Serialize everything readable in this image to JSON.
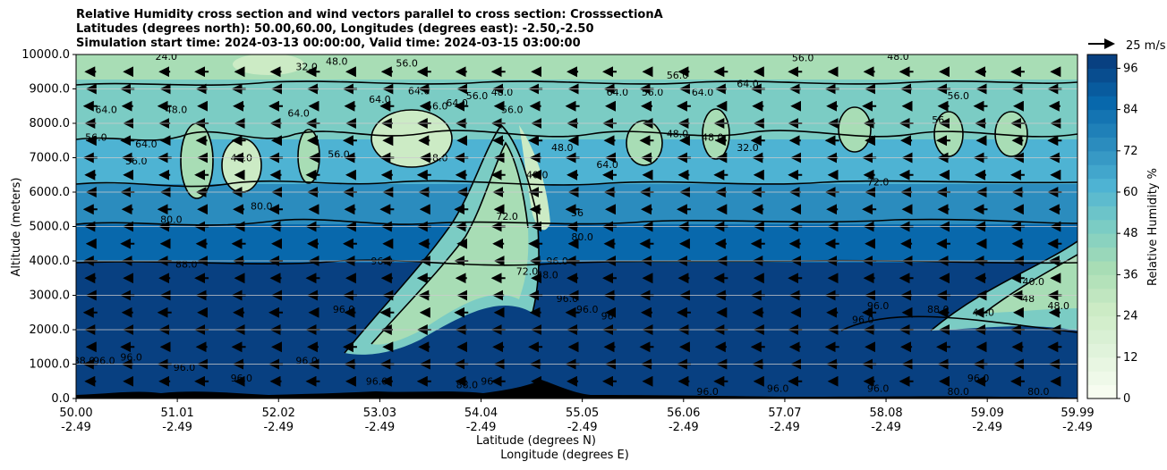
{
  "chart_data": {
    "type": "heatmap",
    "title_lines": [
      "Relative Humidity cross section and wind vectors parallel to cross section: CrosssectionA",
      "Latitudes (degrees north): 50.00,60.00, Longitudes (degrees east): -2.50,-2.50",
      "Simulation start time: 2024-03-13 00:00:00, Valid time: 2024-03-15 03:00:00"
    ],
    "ylabel": "Altitude (meters)",
    "xlabel_lines": [
      "Latitude (degrees N)",
      "Longitude (degrees E)"
    ],
    "xlim": [
      50.0,
      59.99
    ],
    "ylim": [
      0,
      10000
    ],
    "grid": "horizontal",
    "y_ticks": [
      {
        "value": 0,
        "label": "0.0"
      },
      {
        "value": 1000,
        "label": "1000.0"
      },
      {
        "value": 2000,
        "label": "2000.0"
      },
      {
        "value": 3000,
        "label": "3000.0"
      },
      {
        "value": 4000,
        "label": "4000.0"
      },
      {
        "value": 5000,
        "label": "5000.0"
      },
      {
        "value": 6000,
        "label": "6000.0"
      },
      {
        "value": 7000,
        "label": "7000.0"
      },
      {
        "value": 8000,
        "label": "8000.0"
      },
      {
        "value": 9000,
        "label": "9000.0"
      },
      {
        "value": 10000,
        "label": "10000.0"
      }
    ],
    "x_ticks": [
      {
        "value": 50.0,
        "lat": "50.00",
        "lon": "-2.49"
      },
      {
        "value": 51.01,
        "lat": "51.01",
        "lon": "-2.49"
      },
      {
        "value": 52.02,
        "lat": "52.02",
        "lon": "-2.49"
      },
      {
        "value": 53.03,
        "lat": "53.03",
        "lon": "-2.49"
      },
      {
        "value": 54.04,
        "lat": "54.04",
        "lon": "-2.49"
      },
      {
        "value": 55.05,
        "lat": "55.05",
        "lon": "-2.49"
      },
      {
        "value": 56.06,
        "lat": "56.06",
        "lon": "-2.49"
      },
      {
        "value": 57.07,
        "lat": "57.07",
        "lon": "-2.49"
      },
      {
        "value": 58.08,
        "lat": "58.08",
        "lon": "-2.49"
      },
      {
        "value": 59.09,
        "lat": "59.09",
        "lon": "-2.49"
      },
      {
        "value": 59.99,
        "lat": "59.99",
        "lon": "-2.49"
      }
    ],
    "colorbar": {
      "label": "Relative Humidity %",
      "min": 0,
      "max": 100,
      "step": 4,
      "ticks": [
        "0",
        "12",
        "24",
        "36",
        "48",
        "60",
        "72",
        "84",
        "96"
      ],
      "colormap": "GnBu",
      "colors": [
        "#f7fcf0",
        "#e0f3db",
        "#ccebc5",
        "#a8ddb5",
        "#7bccc4",
        "#4eb3d3",
        "#2b8cbe",
        "#0868ac",
        "#084081"
      ]
    },
    "quiver_key": {
      "label": "25 m/s"
    },
    "wind_direction": "southward (pointing left) in most of domain",
    "contour_labels": [
      {
        "x": 50.08,
        "y": 1000,
        "text": "88.0"
      },
      {
        "x": 50.28,
        "y": 1000,
        "text": "96.0"
      },
      {
        "x": 50.55,
        "y": 1100,
        "text": "96.0"
      },
      {
        "x": 50.2,
        "y": 7500,
        "text": "56.0"
      },
      {
        "x": 50.3,
        "y": 8300,
        "text": "64.0"
      },
      {
        "x": 50.6,
        "y": 6800,
        "text": "56.0"
      },
      {
        "x": 50.7,
        "y": 7300,
        "text": "64.0"
      },
      {
        "x": 50.9,
        "y": 9850,
        "text": "24.0"
      },
      {
        "x": 51.0,
        "y": 8300,
        "text": "48.0"
      },
      {
        "x": 50.95,
        "y": 5100,
        "text": "80.0"
      },
      {
        "x": 51.1,
        "y": 3800,
        "text": "88.0"
      },
      {
        "x": 51.08,
        "y": 800,
        "text": "96.0"
      },
      {
        "x": 51.85,
        "y": 5500,
        "text": "80.0"
      },
      {
        "x": 51.65,
        "y": 6900,
        "text": "48.0"
      },
      {
        "x": 52.22,
        "y": 8200,
        "text": "64.0"
      },
      {
        "x": 52.3,
        "y": 9550,
        "text": "32.0"
      },
      {
        "x": 52.6,
        "y": 9700,
        "text": "48.0"
      },
      {
        "x": 52.62,
        "y": 7000,
        "text": "56.0"
      },
      {
        "x": 52.3,
        "y": 1000,
        "text": "96.0"
      },
      {
        "x": 51.65,
        "y": 500,
        "text": "96.0"
      },
      {
        "x": 52.67,
        "y": 2500,
        "text": "96.0"
      },
      {
        "x": 53.03,
        "y": 8600,
        "text": "64.0"
      },
      {
        "x": 53.05,
        "y": 3900,
        "text": "96.0"
      },
      {
        "x": 53.3,
        "y": 9650,
        "text": "56.0"
      },
      {
        "x": 53.42,
        "y": 8850,
        "text": "64.0"
      },
      {
        "x": 53.6,
        "y": 8400,
        "text": "56.0"
      },
      {
        "x": 53.6,
        "y": 6900,
        "text": "48.0"
      },
      {
        "x": 53.8,
        "y": 8500,
        "text": "64.0"
      },
      {
        "x": 54.0,
        "y": 8700,
        "text": "56.0"
      },
      {
        "x": 54.25,
        "y": 8800,
        "text": "48.0"
      },
      {
        "x": 54.35,
        "y": 8300,
        "text": "56.0"
      },
      {
        "x": 54.3,
        "y": 5200,
        "text": "72.0"
      },
      {
        "x": 54.5,
        "y": 3600,
        "text": "72.0"
      },
      {
        "x": 54.7,
        "y": 3500,
        "text": "48.0"
      },
      {
        "x": 54.6,
        "y": 6400,
        "text": "40.0"
      },
      {
        "x": 54.85,
        "y": 7200,
        "text": "48.0"
      },
      {
        "x": 55.0,
        "y": 5300,
        "text": "56"
      },
      {
        "x": 54.8,
        "y": 3900,
        "text": "96.0"
      },
      {
        "x": 55.05,
        "y": 4600,
        "text": "80.0"
      },
      {
        "x": 54.9,
        "y": 2800,
        "text": "96.0"
      },
      {
        "x": 55.1,
        "y": 2500,
        "text": "96.0"
      },
      {
        "x": 55.3,
        "y": 2300,
        "text": "96"
      },
      {
        "x": 53.9,
        "y": 300,
        "text": "88.0"
      },
      {
        "x": 53.0,
        "y": 400,
        "text": "96.0"
      },
      {
        "x": 54.1,
        "y": 400,
        "text": "96"
      },
      {
        "x": 55.4,
        "y": 8800,
        "text": "64.0"
      },
      {
        "x": 55.75,
        "y": 8800,
        "text": "56.0"
      },
      {
        "x": 55.3,
        "y": 6700,
        "text": "64.0"
      },
      {
        "x": 56.0,
        "y": 9300,
        "text": "56.0"
      },
      {
        "x": 56.25,
        "y": 8800,
        "text": "64.0"
      },
      {
        "x": 56.0,
        "y": 7600,
        "text": "48.0"
      },
      {
        "x": 56.35,
        "y": 7500,
        "text": "48.0"
      },
      {
        "x": 56.7,
        "y": 9050,
        "text": "64.0"
      },
      {
        "x": 56.7,
        "y": 7200,
        "text": "32.0"
      },
      {
        "x": 57.25,
        "y": 9800,
        "text": "56.0"
      },
      {
        "x": 58.0,
        "y": 6200,
        "text": "72.0"
      },
      {
        "x": 58.8,
        "y": 8700,
        "text": "56.0"
      },
      {
        "x": 58.6,
        "y": 8000,
        "text": "56"
      },
      {
        "x": 58.2,
        "y": 9850,
        "text": "48.0"
      },
      {
        "x": 57.85,
        "y": 2200,
        "text": "96.0"
      },
      {
        "x": 58.0,
        "y": 2600,
        "text": "96.0"
      },
      {
        "x": 58.6,
        "y": 2500,
        "text": "88.0"
      },
      {
        "x": 59.05,
        "y": 2400,
        "text": "48.0"
      },
      {
        "x": 59.5,
        "y": 2800,
        "text": "48"
      },
      {
        "x": 59.8,
        "y": 2600,
        "text": "48.0"
      },
      {
        "x": 59.55,
        "y": 3300,
        "text": "40.0"
      },
      {
        "x": 58.8,
        "y": 100,
        "text": "80.0"
      },
      {
        "x": 59.6,
        "y": 100,
        "text": "80.0"
      },
      {
        "x": 58.0,
        "y": 200,
        "text": "96.0"
      },
      {
        "x": 59.0,
        "y": 500,
        "text": "96.0"
      },
      {
        "x": 56.3,
        "y": 100,
        "text": "96.0"
      },
      {
        "x": 57.0,
        "y": 200,
        "text": "96.0"
      }
    ]
  }
}
